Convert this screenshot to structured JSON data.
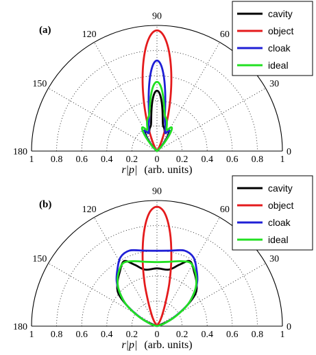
{
  "chart_data": [
    {
      "type": "polar",
      "panel_label": "(a)",
      "xlabel_var": "r|p|",
      "xlabel_units": "(arb. units)",
      "radial_ticks": [
        "1",
        "0.8",
        "0.6",
        "0.4",
        "0.2",
        "0",
        "0.2",
        "0.4",
        "0.6",
        "0.8",
        "1"
      ],
      "angle_labels": [
        "0",
        "30",
        "60",
        "90",
        "120",
        "150",
        "180"
      ],
      "rlim": [
        0,
        1
      ],
      "angle_range_deg": [
        0,
        180
      ],
      "grid": true,
      "legend_position": "top-right",
      "series": [
        {
          "name": "cavity",
          "color": "#000000",
          "lobes": [
            {
              "angle": 90,
              "r": 0.48,
              "width": 6
            },
            {
              "angle": 107,
              "r": 0.18,
              "width": 5
            },
            {
              "angle": 73,
              "r": 0.18,
              "width": 5
            },
            {
              "angle": 121,
              "r": 0.18,
              "width": 5
            },
            {
              "angle": 59,
              "r": 0.18,
              "width": 5
            }
          ]
        },
        {
          "name": "object",
          "color": "#e41a1c",
          "lobes": [
            {
              "angle": 90,
              "r": 0.96,
              "width": 8
            },
            {
              "angle": 100,
              "r": 0.05,
              "width": 4
            },
            {
              "angle": 80,
              "r": 0.05,
              "width": 4
            }
          ]
        },
        {
          "name": "cloak",
          "color": "#1f1fd6",
          "lobes": [
            {
              "angle": 90,
              "r": 0.72,
              "width": 6
            },
            {
              "angle": 107,
              "r": 0.2,
              "width": 5
            },
            {
              "angle": 73,
              "r": 0.2,
              "width": 5
            },
            {
              "angle": 122,
              "r": 0.19,
              "width": 5
            },
            {
              "angle": 58,
              "r": 0.19,
              "width": 5
            }
          ]
        },
        {
          "name": "ideal",
          "color": "#22e022",
          "lobes": [
            {
              "angle": 90,
              "r": 0.55,
              "width": 6.5
            },
            {
              "angle": 107,
              "r": 0.24,
              "width": 5
            },
            {
              "angle": 73,
              "r": 0.24,
              "width": 5
            },
            {
              "angle": 122,
              "r": 0.22,
              "width": 5
            },
            {
              "angle": 58,
              "r": 0.22,
              "width": 5
            }
          ]
        }
      ]
    },
    {
      "type": "polar",
      "panel_label": "(b)",
      "xlabel_var": "r|p|",
      "xlabel_units": "(arb. units)",
      "radial_ticks": [
        "1",
        "0.8",
        "0.6",
        "0.4",
        "0.2",
        "0",
        "0.2",
        "0.4",
        "0.6",
        "0.8",
        "1"
      ],
      "angle_labels": [
        "0",
        "30",
        "60",
        "90",
        "120",
        "150",
        "180"
      ],
      "rlim": [
        0,
        1
      ],
      "angle_range_deg": [
        0,
        180
      ],
      "grid": true,
      "legend_position": "top-right",
      "series": [
        {
          "name": "cavity",
          "color": "#000000",
          "curve": [
            {
              "angle": 25,
              "r": 0.12
            },
            {
              "angle": 33,
              "r": 0.26
            },
            {
              "angle": 40,
              "r": 0.4
            },
            {
              "angle": 48,
              "r": 0.47
            },
            {
              "angle": 55,
              "r": 0.52
            },
            {
              "angle": 63,
              "r": 0.58
            },
            {
              "angle": 70,
              "r": 0.52
            },
            {
              "angle": 78,
              "r": 0.46
            },
            {
              "angle": 90,
              "r": 0.46
            },
            {
              "angle": 102,
              "r": 0.46
            },
            {
              "angle": 110,
              "r": 0.52
            },
            {
              "angle": 117,
              "r": 0.58
            },
            {
              "angle": 125,
              "r": 0.52
            },
            {
              "angle": 132,
              "r": 0.47
            },
            {
              "angle": 140,
              "r": 0.4
            },
            {
              "angle": 147,
              "r": 0.26
            },
            {
              "angle": 155,
              "r": 0.12
            }
          ]
        },
        {
          "name": "object",
          "color": "#e41a1c",
          "curve": [
            {
              "angle": 60,
              "r": 0.05
            },
            {
              "angle": 65,
              "r": 0.1
            },
            {
              "angle": 70,
              "r": 0.2
            },
            {
              "angle": 74,
              "r": 0.36
            },
            {
              "angle": 78,
              "r": 0.55
            },
            {
              "angle": 82,
              "r": 0.75
            },
            {
              "angle": 86,
              "r": 0.9
            },
            {
              "angle": 90,
              "r": 0.95
            },
            {
              "angle": 94,
              "r": 0.9
            },
            {
              "angle": 98,
              "r": 0.75
            },
            {
              "angle": 102,
              "r": 0.55
            },
            {
              "angle": 106,
              "r": 0.36
            },
            {
              "angle": 110,
              "r": 0.2
            },
            {
              "angle": 115,
              "r": 0.1
            },
            {
              "angle": 120,
              "r": 0.05
            }
          ]
        },
        {
          "name": "cloak",
          "color": "#1f1fd6",
          "curve": [
            {
              "angle": 20,
              "r": 0.06
            },
            {
              "angle": 28,
              "r": 0.16
            },
            {
              "angle": 35,
              "r": 0.3
            },
            {
              "angle": 42,
              "r": 0.4
            },
            {
              "angle": 48,
              "r": 0.48
            },
            {
              "angle": 55,
              "r": 0.55
            },
            {
              "angle": 62,
              "r": 0.62
            },
            {
              "angle": 70,
              "r": 0.64
            },
            {
              "angle": 80,
              "r": 0.61
            },
            {
              "angle": 90,
              "r": 0.6
            },
            {
              "angle": 100,
              "r": 0.61
            },
            {
              "angle": 110,
              "r": 0.64
            },
            {
              "angle": 118,
              "r": 0.62
            },
            {
              "angle": 125,
              "r": 0.55
            },
            {
              "angle": 132,
              "r": 0.48
            },
            {
              "angle": 138,
              "r": 0.4
            },
            {
              "angle": 145,
              "r": 0.3
            },
            {
              "angle": 152,
              "r": 0.16
            },
            {
              "angle": 160,
              "r": 0.06
            }
          ]
        },
        {
          "name": "ideal",
          "color": "#22e022",
          "curve": [
            {
              "angle": 20,
              "r": 0.06
            },
            {
              "angle": 28,
              "r": 0.17
            },
            {
              "angle": 35,
              "r": 0.3
            },
            {
              "angle": 42,
              "r": 0.4
            },
            {
              "angle": 48,
              "r": 0.47
            },
            {
              "angle": 55,
              "r": 0.53
            },
            {
              "angle": 62,
              "r": 0.57
            },
            {
              "angle": 70,
              "r": 0.55
            },
            {
              "angle": 80,
              "r": 0.52
            },
            {
              "angle": 90,
              "r": 0.51
            },
            {
              "angle": 100,
              "r": 0.52
            },
            {
              "angle": 110,
              "r": 0.55
            },
            {
              "angle": 118,
              "r": 0.57
            },
            {
              "angle": 125,
              "r": 0.53
            },
            {
              "angle": 132,
              "r": 0.47
            },
            {
              "angle": 138,
              "r": 0.4
            },
            {
              "angle": 145,
              "r": 0.3
            },
            {
              "angle": 152,
              "r": 0.17
            },
            {
              "angle": 160,
              "r": 0.06
            }
          ]
        }
      ]
    }
  ]
}
